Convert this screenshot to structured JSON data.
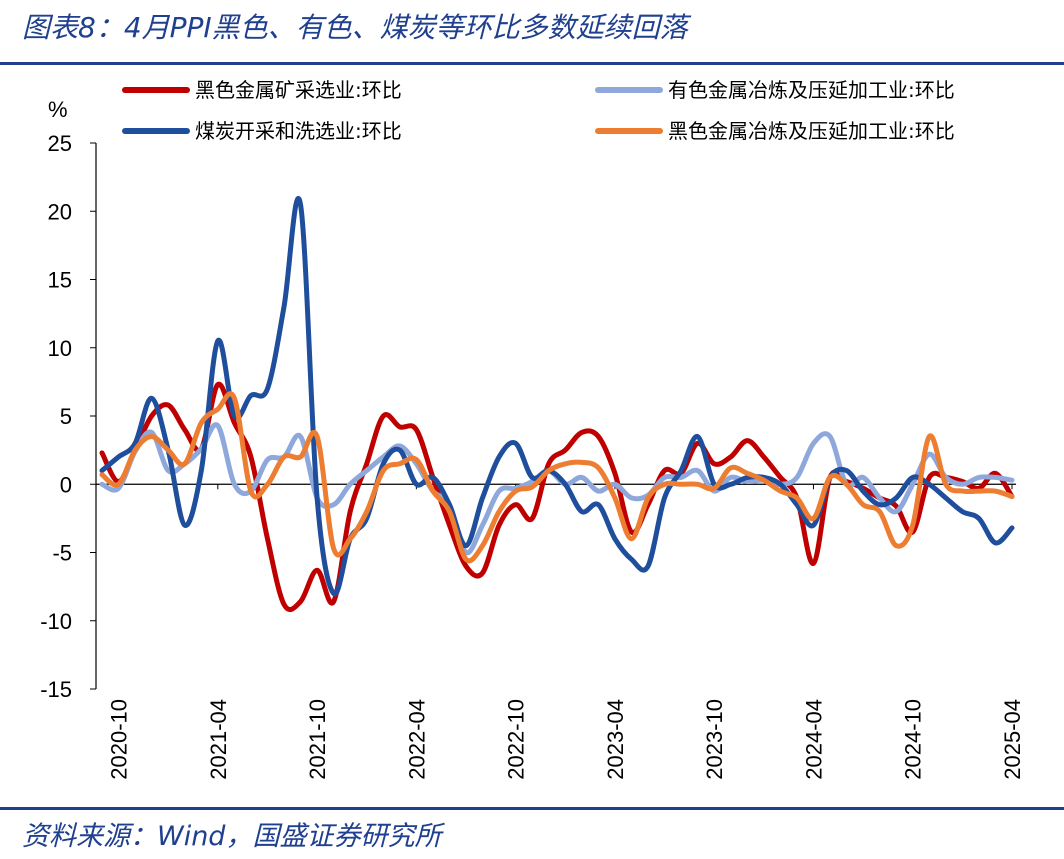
{
  "title": "图表8：4月PPI黑色、有色、煤炭等环比多数延续回落",
  "source": "资料来源：Wind，国盛证券研究所",
  "chart_data": {
    "type": "line",
    "ylabel": "%",
    "ylim": [
      -15,
      25
    ],
    "yticks": [
      25,
      20,
      15,
      10,
      5,
      0,
      -5,
      -10,
      -15
    ],
    "xticks": [
      "2020-10",
      "2021-04",
      "2021-10",
      "2022-04",
      "2022-10",
      "2023-04",
      "2023-10",
      "2024-04",
      "2024-10",
      "2025-04"
    ],
    "x": [
      "2020-09",
      "2020-10",
      "2020-11",
      "2020-12",
      "2021-01",
      "2021-02",
      "2021-03",
      "2021-04",
      "2021-05",
      "2021-06",
      "2021-07",
      "2021-08",
      "2021-09",
      "2021-10",
      "2021-11",
      "2021-12",
      "2022-01",
      "2022-02",
      "2022-03",
      "2022-04",
      "2022-05",
      "2022-06",
      "2022-07",
      "2022-08",
      "2022-09",
      "2022-10",
      "2022-11",
      "2022-12",
      "2023-01",
      "2023-02",
      "2023-03",
      "2023-04",
      "2023-05",
      "2023-06",
      "2023-07",
      "2023-08",
      "2023-09",
      "2023-10",
      "2023-11",
      "2023-12",
      "2024-01",
      "2024-02",
      "2024-03",
      "2024-04",
      "2024-05",
      "2024-06",
      "2024-07",
      "2024-08",
      "2024-09",
      "2024-10",
      "2024-11",
      "2024-12",
      "2025-01",
      "2025-02",
      "2025-03",
      "2025-04"
    ],
    "legend_position": "top",
    "series": [
      {
        "name": "黑色金属矿采选业:环比",
        "color": "#c00000",
        "values": [
          2.3,
          0.2,
          2.5,
          5.0,
          5.8,
          4.0,
          2.6,
          7.3,
          4.5,
          2.0,
          -4.0,
          -8.8,
          -8.6,
          -6.3,
          -8.6,
          -2.0,
          1.5,
          5.0,
          4.2,
          4.0,
          0.5,
          -3.0,
          -6.0,
          -6.5,
          -3.0,
          -1.5,
          -2.5,
          1.5,
          2.5,
          3.8,
          3.5,
          0.8,
          -3.5,
          -1.5,
          1.0,
          0.8,
          3.0,
          1.5,
          2.0,
          3.2,
          2.0,
          0.5,
          -1.0,
          -5.8,
          0.5,
          0.2,
          -0.3,
          -1.0,
          -1.6,
          -3.5,
          0.5,
          0.5,
          0.2,
          -0.3,
          0.8,
          -0.9
        ]
      },
      {
        "name": "有色金属冶炼及压延加工业:环比",
        "color": "#8fa8dc",
        "values": [
          0.0,
          -0.3,
          2.4,
          3.8,
          1.0,
          1.5,
          2.6,
          4.3,
          0.0,
          -0.5,
          1.8,
          2.0,
          3.5,
          -1.0,
          -1.5,
          0.0,
          1.0,
          2.0,
          2.8,
          1.5,
          -0.5,
          -1.5,
          -5.0,
          -3.0,
          -0.5,
          -0.3,
          0.2,
          1.0,
          0.0,
          0.5,
          -0.5,
          0.0,
          -1.0,
          -0.8,
          0.5,
          0.5,
          1.0,
          -0.5,
          0.5,
          0.2,
          0.3,
          0.0,
          0.5,
          3.0,
          3.5,
          0.0,
          0.5,
          -1.0,
          -2.0,
          0.0,
          2.2,
          0.5,
          0.0,
          0.5,
          0.5,
          0.3
        ]
      },
      {
        "name": "煤炭开采和洗选业:环比",
        "color": "#1f4e9c",
        "values": [
          1.0,
          2.0,
          3.0,
          6.3,
          2.5,
          -3.0,
          1.0,
          10.5,
          5.0,
          6.5,
          7.0,
          13.0,
          20.5,
          -1.0,
          -8.0,
          -4.0,
          -2.5,
          1.5,
          2.5,
          0.0,
          0.5,
          -1.5,
          -4.5,
          -1.0,
          2.0,
          3.0,
          0.5,
          1.0,
          0.0,
          -2.0,
          -1.5,
          -4.0,
          -5.5,
          -6.0,
          -1.0,
          1.0,
          3.5,
          0.0,
          0.0,
          0.5,
          0.5,
          0.0,
          -1.5,
          -3.0,
          0.5,
          1.0,
          -0.5,
          -1.5,
          -1.0,
          0.5,
          0.0,
          -1.0,
          -2.0,
          -2.5,
          -4.3,
          -3.2
        ]
      },
      {
        "name": "黑色金属冶炼及压延加工业:环比",
        "color": "#ed7d31",
        "values": [
          0.7,
          0.0,
          2.5,
          3.5,
          2.5,
          1.5,
          4.5,
          5.5,
          6.3,
          -0.5,
          0.0,
          2.0,
          2.0,
          3.5,
          -4.7,
          -4.0,
          -2.0,
          1.0,
          1.5,
          1.8,
          -0.5,
          -2.0,
          -5.5,
          -4.5,
          -2.0,
          -0.5,
          -0.2,
          1.0,
          1.5,
          1.6,
          1.2,
          -1.0,
          -4.0,
          -1.0,
          0.0,
          0.0,
          0.0,
          -0.3,
          1.2,
          0.8,
          0.3,
          -0.5,
          -1.0,
          -2.5,
          0.5,
          0.0,
          -1.5,
          -2.0,
          -4.5,
          -3.0,
          3.5,
          0.0,
          -0.5,
          -0.5,
          -0.5,
          -0.9
        ]
      }
    ]
  }
}
